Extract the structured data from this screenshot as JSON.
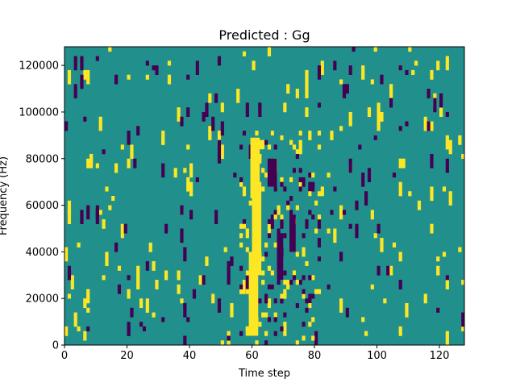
{
  "chart_data": {
    "type": "heatmap",
    "title": "Predicted : Gg",
    "xlabel": "Time step",
    "ylabel": "Frequency (Hz)",
    "xlim": [
      0,
      128
    ],
    "ylim": [
      0,
      128000
    ],
    "xticks": [
      0,
      20,
      40,
      60,
      80,
      100,
      120
    ],
    "xtick_labels": [
      "0",
      "20",
      "40",
      "60",
      "80",
      "100",
      "120"
    ],
    "yticks": [
      0,
      20000,
      40000,
      60000,
      80000,
      100000,
      120000
    ],
    "ytick_labels": [
      "0",
      "20000",
      "40000",
      "60000",
      "80000",
      "100000",
      "120000"
    ],
    "grid": false,
    "colormap": {
      "background": "#21908c",
      "high": "#fde725",
      "low": "#440154"
    },
    "bands": [
      {
        "x0": 59.5,
        "x1": 62.5,
        "y0": 63000,
        "y1": 89000,
        "level": "high"
      },
      {
        "x0": 60,
        "x1": 63,
        "y0": 30000,
        "y1": 70000,
        "level": "high"
      },
      {
        "x0": 59,
        "x1": 62,
        "y0": 4000,
        "y1": 40000,
        "level": "high"
      },
      {
        "x0": 58,
        "x1": 61,
        "y0": 4000,
        "y1": 8000,
        "level": "high"
      },
      {
        "x0": 61,
        "x1": 64,
        "y0": 88000,
        "y1": 84000,
        "level": "high"
      },
      {
        "x0": 65,
        "x1": 68,
        "y0": 68000,
        "y1": 80000,
        "level": "low"
      },
      {
        "x0": 68,
        "x1": 70,
        "y0": 28000,
        "y1": 48000,
        "level": "low"
      },
      {
        "x0": 72,
        "x1": 74,
        "y0": 40000,
        "y1": 56000,
        "level": "low"
      }
    ],
    "seed": 7,
    "scatter_cells": {
      "high_count": 170,
      "low_count": 135
    }
  }
}
